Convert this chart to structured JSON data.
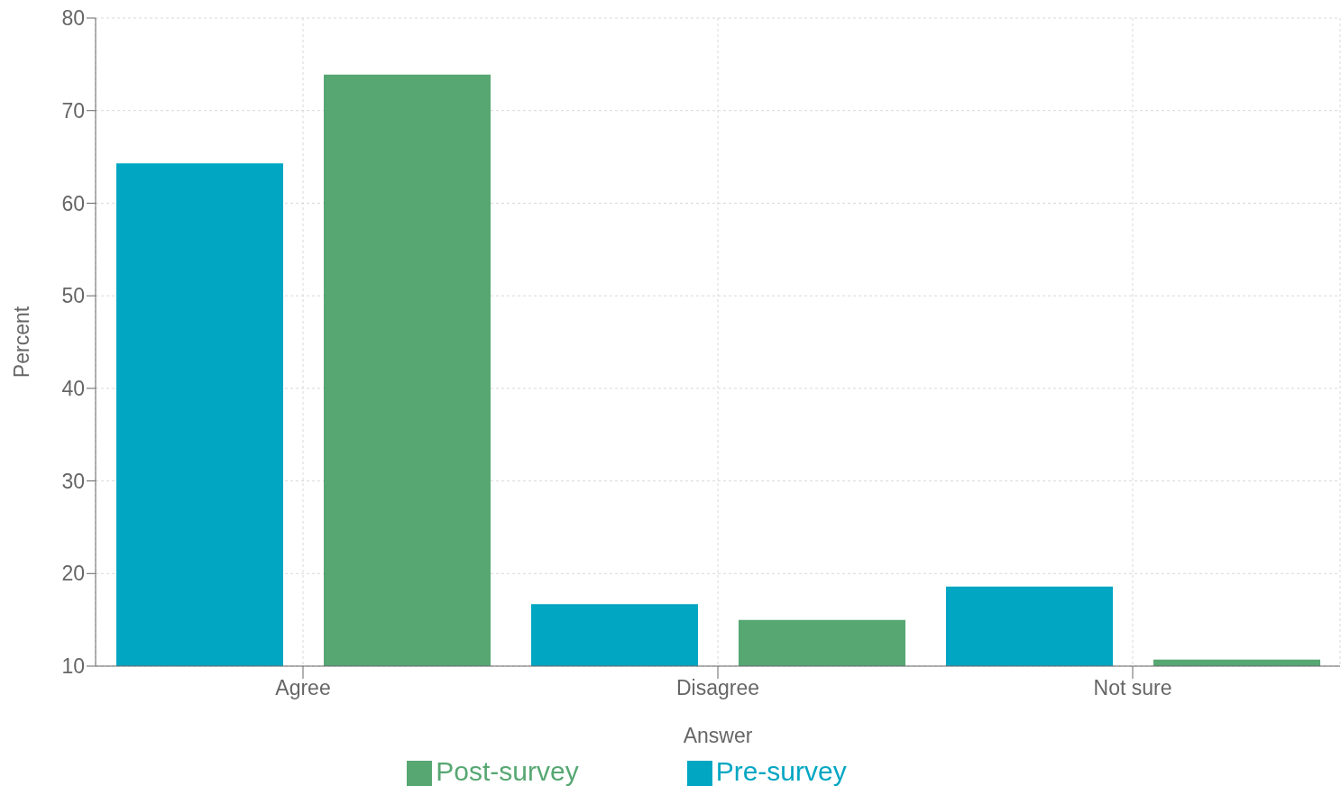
{
  "chart_data": {
    "type": "bar",
    "xlabel": "Answer",
    "ylabel": "Percent",
    "categories": [
      "Agree",
      "Disagree",
      "Not sure"
    ],
    "series": [
      {
        "name": "Pre-survey",
        "color": "#00a6c2",
        "values": [
          64.3,
          16.7,
          18.6
        ]
      },
      {
        "name": "Post-survey",
        "color": "#57a773",
        "values": [
          73.9,
          15.0,
          10.7
        ]
      }
    ],
    "ylim": [
      10,
      80
    ],
    "yticks": [
      10,
      20,
      30,
      40,
      50,
      60,
      70,
      80
    ],
    "grid": true,
    "legend": "bottom"
  }
}
